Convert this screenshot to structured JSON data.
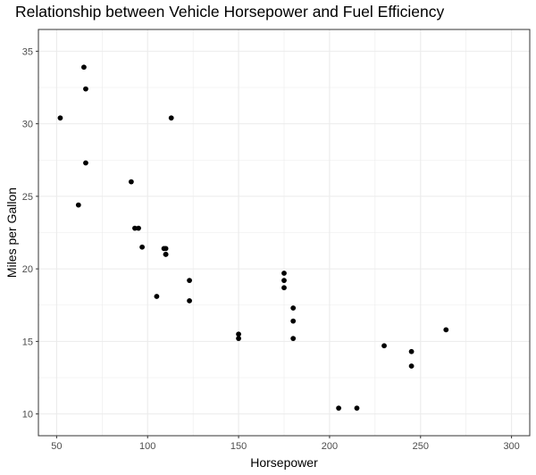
{
  "chart_data": {
    "type": "scatter",
    "title": "Relationship between Vehicle Horsepower and Fuel Efficiency",
    "xlabel": "Horsepower",
    "ylabel": "Miles per Gallon",
    "xlim": [
      40,
      310
    ],
    "ylim": [
      8.5,
      36.5
    ],
    "x_ticks": [
      50,
      100,
      150,
      200,
      250,
      300
    ],
    "y_ticks": [
      10,
      15,
      20,
      25,
      30,
      35
    ],
    "x_minor": [
      75,
      125,
      175,
      225,
      275
    ],
    "y_minor": [
      12.5,
      17.5,
      22.5,
      27.5,
      32.5
    ],
    "grid": true,
    "point_color": "#000000",
    "panel_border_color": "#333333",
    "grid_color": "#ebebeb",
    "points": [
      {
        "x": 110,
        "y": 21.0
      },
      {
        "x": 110,
        "y": 21.0
      },
      {
        "x": 93,
        "y": 22.8
      },
      {
        "x": 110,
        "y": 21.4
      },
      {
        "x": 175,
        "y": 18.7
      },
      {
        "x": 105,
        "y": 18.1
      },
      {
        "x": 245,
        "y": 14.3
      },
      {
        "x": 62,
        "y": 24.4
      },
      {
        "x": 95,
        "y": 22.8
      },
      {
        "x": 123,
        "y": 19.2
      },
      {
        "x": 123,
        "y": 17.8
      },
      {
        "x": 180,
        "y": 16.4
      },
      {
        "x": 180,
        "y": 17.3
      },
      {
        "x": 180,
        "y": 15.2
      },
      {
        "x": 205,
        "y": 10.4
      },
      {
        "x": 215,
        "y": 10.4
      },
      {
        "x": 230,
        "y": 14.7
      },
      {
        "x": 66,
        "y": 32.4
      },
      {
        "x": 52,
        "y": 30.4
      },
      {
        "x": 65,
        "y": 33.9
      },
      {
        "x": 97,
        "y": 21.5
      },
      {
        "x": 150,
        "y": 15.5
      },
      {
        "x": 150,
        "y": 15.2
      },
      {
        "x": 245,
        "y": 13.3
      },
      {
        "x": 175,
        "y": 19.2
      },
      {
        "x": 66,
        "y": 27.3
      },
      {
        "x": 91,
        "y": 26.0
      },
      {
        "x": 113,
        "y": 30.4
      },
      {
        "x": 264,
        "y": 15.8
      },
      {
        "x": 175,
        "y": 19.7
      },
      {
        "x": 109,
        "y": 21.4
      }
    ]
  }
}
